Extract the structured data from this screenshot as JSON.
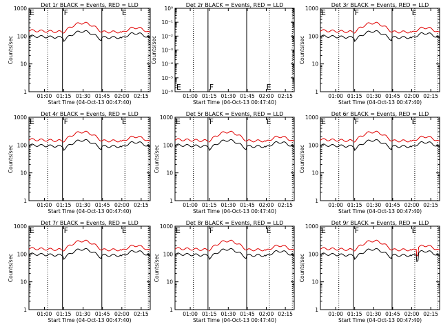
{
  "common": {
    "x_ticks": [
      "01:00",
      "01:15",
      "01:30",
      "01:45",
      "02:00",
      "02:15"
    ],
    "x_label": "Start Time (04-Oct-13 00:47:40)",
    "y_label": "Counts/sec",
    "y_ticks_counts": [
      "1",
      "10",
      "100",
      "1000"
    ],
    "y_ticks_empty": [
      "10⁻⁶",
      "10⁻⁵",
      "10⁻⁴",
      "10⁻³",
      "10⁻²",
      "10⁻¹",
      "10⁰"
    ],
    "marker_e": "E",
    "marker_f": "F"
  },
  "chart_data": [
    {
      "type": "line",
      "title": "Det 1r BLACK = Events, RED = LLD",
      "yscale": "log",
      "ylim": [
        1,
        1000
      ],
      "red_level": 1.15,
      "black_level": 0.95,
      "bump": true,
      "xlim_min": [
        48,
        142
      ],
      "vlines_dotted_min": [
        62.5,
        122.4,
        140.5
      ],
      "vlines_solid_min": [
        74,
        104.5
      ],
      "markers": [
        {
          "label": "E",
          "min": 48
        },
        {
          "label": "F",
          "min": 74.5
        },
        {
          "label": "E",
          "min": 119.5
        }
      ]
    },
    {
      "type": "line",
      "title": "Det 2r BLACK = Events, RED = LLD",
      "yscale": "log",
      "ylim": [
        1e-06,
        1
      ],
      "empty": true,
      "xlim_min": [
        48,
        142
      ],
      "vlines_dotted_min": [
        62.5,
        122.4,
        140.5
      ],
      "vlines_solid_min": [
        74,
        104.5
      ],
      "markers": [
        {
          "label": "E",
          "min": 48.5
        },
        {
          "label": "F",
          "min": 74.5
        },
        {
          "label": "E",
          "min": 119.5
        }
      ]
    },
    {
      "type": "line",
      "title": "Det 3r BLACK = Events, RED = LLD",
      "yscale": "log",
      "ylim": [
        1,
        1000
      ],
      "red_level": 1.15,
      "black_level": 0.95,
      "bump": true,
      "xlim_min": [
        48,
        142
      ],
      "vlines_dotted_min": [
        62.5,
        122.4,
        140.5
      ],
      "vlines_solid_min": [
        74,
        104.5
      ],
      "markers": [
        {
          "label": "E",
          "min": 48
        },
        {
          "label": "F",
          "min": 74.5
        },
        {
          "label": "E",
          "min": 119.5
        }
      ]
    },
    {
      "type": "line",
      "title": "Det 4r BLACK = Events, RED = LLD",
      "yscale": "log",
      "ylim": [
        1,
        1000
      ],
      "red_level": 1.15,
      "black_level": 0.95,
      "bump": true,
      "xlim_min": [
        48,
        142
      ],
      "vlines_dotted_min": [
        62.5,
        122.4,
        140.5
      ],
      "vlines_solid_min": [
        74,
        104.5
      ],
      "markers": [
        {
          "label": "E",
          "min": 48
        },
        {
          "label": "F",
          "min": 74.5
        },
        {
          "label": "E",
          "min": 119.5
        }
      ]
    },
    {
      "type": "line",
      "title": "Det 5r BLACK = Events, RED = LLD",
      "yscale": "log",
      "ylim": [
        1,
        1000
      ],
      "red_level": 1.15,
      "black_level": 0.95,
      "bump": true,
      "xlim_min": [
        48,
        142
      ],
      "vlines_dotted_min": [
        62.5,
        122.4,
        140.5
      ],
      "vlines_solid_min": [
        74,
        104.5
      ],
      "markers": [
        {
          "label": "E",
          "min": 48
        },
        {
          "label": "F",
          "min": 74.5
        },
        {
          "label": "E",
          "min": 119.5
        }
      ]
    },
    {
      "type": "line",
      "title": "Det 6r BLACK = Events, RED = LLD",
      "yscale": "log",
      "ylim": [
        1,
        1000
      ],
      "red_level": 1.15,
      "black_level": 0.95,
      "bump": true,
      "xlim_min": [
        48,
        142
      ],
      "vlines_dotted_min": [
        62.5,
        122.4,
        140.5
      ],
      "vlines_solid_min": [
        74,
        104.5
      ],
      "markers": [
        {
          "label": "E",
          "min": 48
        },
        {
          "label": "F",
          "min": 74.5
        },
        {
          "label": "E",
          "min": 119.5
        }
      ]
    },
    {
      "type": "line",
      "title": "Det 7r BLACK = Events, RED = LLD",
      "yscale": "log",
      "ylim": [
        1,
        1000
      ],
      "red_level": 1.15,
      "black_level": 0.95,
      "bump": true,
      "xlim_min": [
        48,
        142
      ],
      "vlines_dotted_min": [
        62.5,
        122.4,
        140.5
      ],
      "vlines_solid_min": [
        74,
        104.5
      ],
      "markers": [
        {
          "label": "E",
          "min": 48
        },
        {
          "label": "F",
          "min": 74.5
        },
        {
          "label": "E",
          "min": 119.5
        }
      ]
    },
    {
      "type": "line",
      "title": "Det 8r BLACK = Events, RED = LLD",
      "yscale": "log",
      "ylim": [
        1,
        1000
      ],
      "red_level": 1.15,
      "black_level": 0.95,
      "bump": true,
      "xlim_min": [
        48,
        142
      ],
      "vlines_dotted_min": [
        62.5,
        122.4,
        140.5
      ],
      "vlines_solid_min": [
        74,
        104.5
      ],
      "markers": [
        {
          "label": "E",
          "min": 48
        },
        {
          "label": "F",
          "min": 74.5
        },
        {
          "label": "E",
          "min": 119.5
        }
      ]
    },
    {
      "type": "line",
      "title": "Det 9r BLACK = Events, RED = LLD",
      "yscale": "log",
      "ylim": [
        1,
        1000
      ],
      "red_level": 1.15,
      "black_level": 0.95,
      "bump": true,
      "dips": true,
      "xlim_min": [
        48,
        142
      ],
      "vlines_dotted_min": [
        62.5,
        122.4,
        140.5
      ],
      "vlines_solid_min": [
        74,
        104.5
      ],
      "markers": [
        {
          "label": "E",
          "min": 48
        },
        {
          "label": "F",
          "min": 74.5
        },
        {
          "label": "E",
          "min": 119.5
        }
      ]
    }
  ],
  "colors": {
    "axes": "#000000",
    "events": "#000000",
    "lld": "#e00000",
    "background": "#ffffff"
  }
}
